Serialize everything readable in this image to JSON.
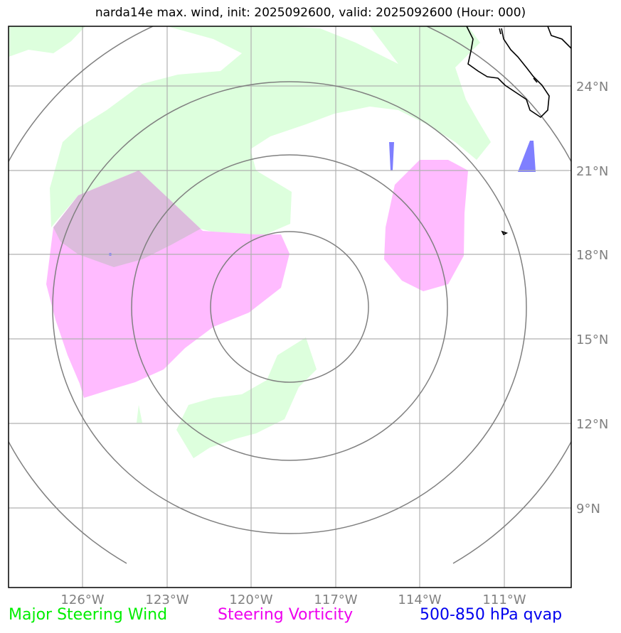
{
  "title": "narda14e max. wind, init: 2025092600, valid: 2025092600 (Hour: 000)",
  "map": {
    "lat_labels": [
      "24°N",
      "21°N",
      "18°N",
      "15°N",
      "12°N",
      "9°N"
    ],
    "lon_labels": [
      "126°W",
      "123°W",
      "120°W",
      "117°W",
      "114°W",
      "111°W"
    ],
    "extent": {
      "lon_min": -128.65,
      "lon_max": -108.63,
      "lat_min": 6.5,
      "lat_max": 26.5
    },
    "colors": {
      "steering_wind": "#ddffdd",
      "steering_vorticity": "#ffbbff",
      "qvap": "#7f7fff",
      "overlap": "#dcbcdc",
      "range_rings": "#808080",
      "gridlines": "#b0b0b0",
      "coast": "#000000"
    }
  },
  "legend": {
    "wind": {
      "label": "Major Steering Wind",
      "color": "#00ee00"
    },
    "vorticity": {
      "label": "Steering Vorticity",
      "color": "#ee00ee"
    },
    "qvap": {
      "label": "500-850 hPa qvap",
      "color": "#0000ee"
    }
  }
}
